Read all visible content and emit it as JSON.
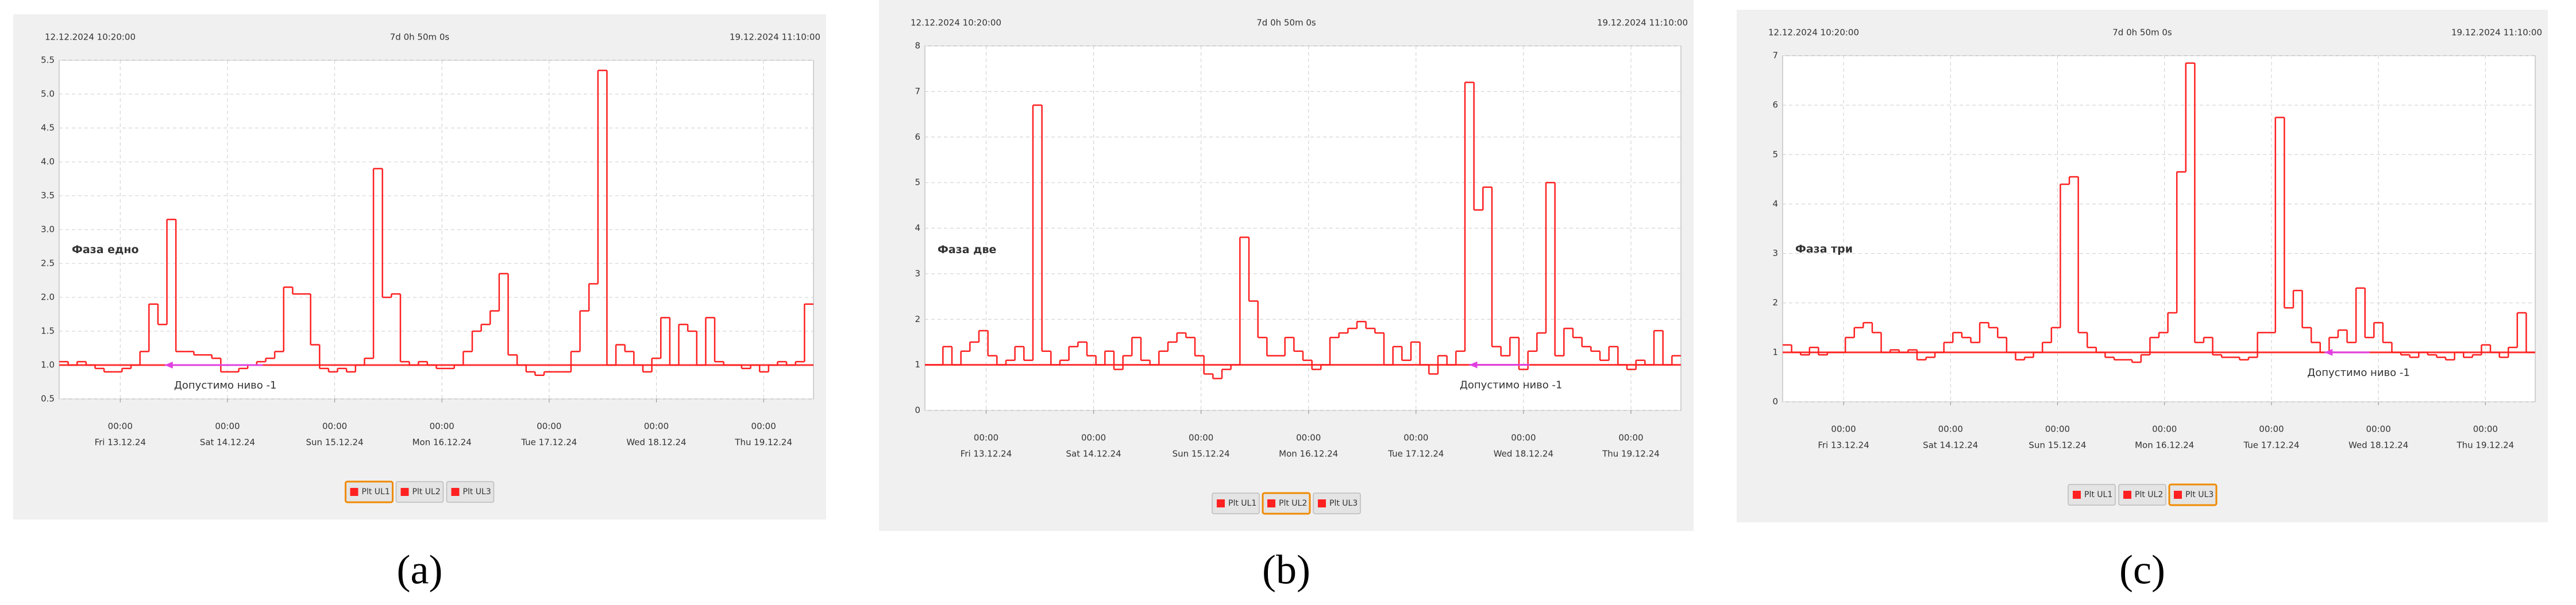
{
  "chart_data": [
    {
      "type": "line",
      "step": true,
      "color": "#ff2020",
      "limit_color": "#ff3030",
      "annotation_color": "#e040e0",
      "start_label": "12.12.2024 10:20:00",
      "duration_label": "7d 0h 50m 0s",
      "end_label": "19.12.2024 11:10:00",
      "phase_label": "Фаза едно",
      "limit_label": "Допустимо ниво -1",
      "limit": 1,
      "ylim": [
        0.5,
        5.5
      ],
      "yticks": [
        {
          "value": 0.5,
          "label": "0.5"
        },
        {
          "value": 1,
          "label": "1.0"
        },
        {
          "value": 1.5,
          "label": "1.5"
        },
        {
          "value": 2,
          "label": "2.0"
        },
        {
          "value": 2.5,
          "label": "2.5"
        },
        {
          "value": 3,
          "label": "3.0"
        },
        {
          "value": 3.5,
          "label": "3.5"
        },
        {
          "value": 4,
          "label": "4.0"
        },
        {
          "value": 4.5,
          "label": "4.5"
        },
        {
          "value": 5,
          "label": "5.0"
        },
        {
          "value": 5.5,
          "label": "5.5"
        }
      ],
      "xtick_times": [
        "00:00",
        "00:00",
        "00:00",
        "00:00",
        "00:00",
        "00:00",
        "00:00"
      ],
      "xtick_days": [
        "Fri 13.12.24",
        "Sat 14.12.24",
        "Sun 15.12.24",
        "Mon 16.12.24",
        "Tue 17.12.24",
        "Wed 18.12.24",
        "Thu 19.12.24"
      ],
      "values": [
        1.05,
        1.0,
        1.05,
        1.0,
        0.95,
        0.9,
        0.9,
        0.95,
        1.0,
        1.2,
        1.9,
        1.6,
        3.15,
        1.2,
        1.2,
        1.15,
        1.15,
        1.1,
        0.9,
        0.9,
        0.95,
        1.0,
        1.05,
        1.1,
        1.2,
        2.15,
        2.05,
        2.05,
        1.3,
        0.95,
        0.9,
        0.95,
        0.9,
        1.0,
        1.1,
        3.9,
        2.0,
        2.05,
        1.05,
        1.0,
        1.05,
        1.0,
        0.95,
        0.95,
        1.0,
        1.2,
        1.5,
        1.6,
        1.8,
        2.35,
        1.15,
        1.0,
        0.9,
        0.85,
        0.9,
        0.9,
        0.9,
        1.2,
        1.8,
        2.2,
        5.35,
        1.0,
        1.3,
        1.2,
        1.0,
        0.9,
        1.1,
        1.7,
        1.0,
        1.6,
        1.5,
        1.0,
        1.7,
        1.05,
        1.0,
        1.0,
        0.95,
        1.0,
        0.9,
        1.0,
        1.05,
        1.0,
        1.05,
        1.9
      ],
      "legend_items": [
        "Plt UL1",
        "Plt UL2",
        "Plt UL3"
      ],
      "active_legend": 0,
      "panel_label": "(a)"
    },
    {
      "type": "line",
      "step": true,
      "color": "#ff2020",
      "limit_color": "#ff3030",
      "annotation_color": "#e040e0",
      "start_label": "12.12.2024 10:20:00",
      "duration_label": "7d 0h 50m 0s",
      "end_label": "19.12.2024 11:10:00",
      "phase_label": "Фаза две",
      "limit_label": "Допустимо ниво -1",
      "limit": 1,
      "ylim": [
        0,
        8
      ],
      "yticks": [
        0,
        1,
        2,
        3,
        4,
        5,
        6,
        7,
        8
      ],
      "xtick_times": [
        "00:00",
        "00:00",
        "00:00",
        "00:00",
        "00:00",
        "00:00",
        "00:00"
      ],
      "xtick_days": [
        "Fri 13.12.24",
        "Sat 14.12.24",
        "Sun 15.12.24",
        "Mon 16.12.24",
        "Tue 17.12.24",
        "Wed 18.12.24",
        "Thu 19.12.24"
      ],
      "values": [
        1.0,
        1.0,
        1.4,
        1.0,
        1.3,
        1.5,
        1.75,
        1.2,
        1.0,
        1.1,
        1.4,
        1.1,
        6.7,
        1.3,
        1.0,
        1.1,
        1.4,
        1.5,
        1.2,
        1.0,
        1.3,
        0.9,
        1.2,
        1.6,
        1.1,
        1.0,
        1.3,
        1.5,
        1.7,
        1.6,
        1.2,
        0.8,
        0.7,
        0.9,
        1.0,
        3.8,
        2.4,
        1.6,
        1.2,
        1.2,
        1.6,
        1.3,
        1.1,
        0.9,
        1.0,
        1.6,
        1.7,
        1.8,
        1.95,
        1.8,
        1.7,
        1.0,
        1.4,
        1.1,
        1.5,
        1.0,
        0.8,
        1.2,
        1.0,
        1.3,
        7.2,
        4.4,
        4.9,
        1.4,
        1.2,
        1.6,
        0.9,
        1.3,
        1.7,
        5.0,
        1.2,
        1.8,
        1.6,
        1.4,
        1.3,
        1.1,
        1.4,
        1.0,
        0.9,
        1.1,
        1.0,
        1.75,
        1.0,
        1.2
      ],
      "legend_items": [
        "Plt UL1",
        "Plt UL2",
        "Plt UL3"
      ],
      "active_legend": 1,
      "panel_label": "(b)"
    },
    {
      "type": "line",
      "step": true,
      "color": "#ff2020",
      "limit_color": "#ff3030",
      "annotation_color": "#e040e0",
      "start_label": "12.12.2024 10:20:00",
      "duration_label": "7d 0h 50m 0s",
      "end_label": "19.12.2024 11:10:00",
      "phase_label": "Фаза три",
      "limit_label": "Допустимо ниво -1",
      "limit": 1,
      "ylim": [
        0,
        7
      ],
      "yticks": [
        0,
        1,
        2,
        3,
        4,
        5,
        6,
        7
      ],
      "xtick_times": [
        "00:00",
        "00:00",
        "00:00",
        "00:00",
        "00:00",
        "00:00",
        "00:00"
      ],
      "xtick_days": [
        "Fri 13.12.24",
        "Sat 14.12.24",
        "Sun 15.12.24",
        "Mon 16.12.24",
        "Tue 17.12.24",
        "Wed 18.12.24",
        "Thu 19.12.24"
      ],
      "values": [
        1.15,
        1.0,
        0.95,
        1.1,
        0.95,
        1.0,
        1.0,
        1.3,
        1.5,
        1.6,
        1.4,
        1.0,
        1.05,
        1.0,
        1.05,
        0.85,
        0.9,
        1.0,
        1.2,
        1.4,
        1.3,
        1.2,
        1.6,
        1.5,
        1.3,
        1.0,
        0.85,
        0.9,
        1.0,
        1.2,
        1.5,
        4.4,
        4.55,
        1.4,
        1.1,
        1.0,
        0.9,
        0.85,
        0.85,
        0.8,
        0.95,
        1.3,
        1.4,
        1.8,
        4.65,
        6.85,
        1.2,
        1.3,
        0.95,
        0.9,
        0.9,
        0.85,
        0.9,
        1.4,
        1.4,
        5.75,
        1.9,
        2.25,
        1.5,
        1.2,
        1.0,
        1.3,
        1.45,
        1.2,
        2.3,
        1.3,
        1.6,
        1.2,
        1.0,
        0.95,
        0.9,
        1.0,
        0.95,
        0.9,
        0.85,
        1.0,
        0.9,
        0.95,
        1.15,
        1.0,
        0.9,
        1.1,
        1.8,
        1.0
      ],
      "legend_items": [
        "Plt UL1",
        "Plt UL2",
        "Plt UL3"
      ],
      "active_legend": 2,
      "panel_label": "(c)"
    }
  ]
}
